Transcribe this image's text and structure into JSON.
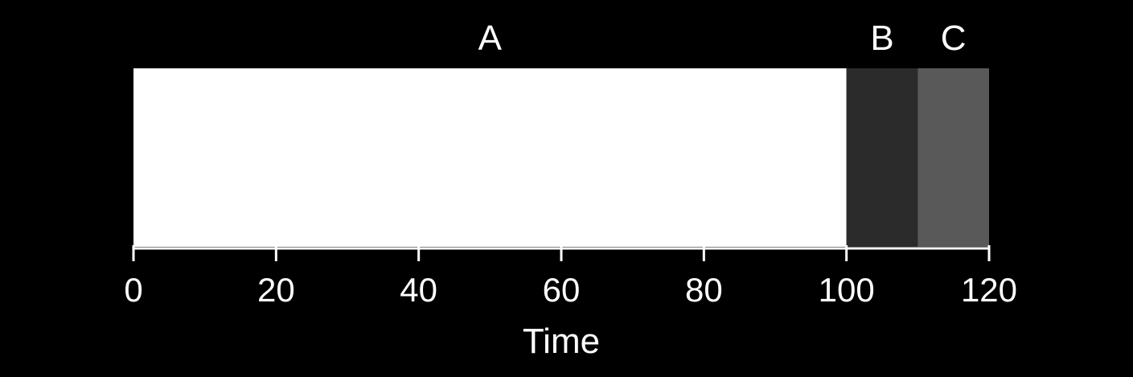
{
  "chart_data": {
    "type": "bar",
    "orientation": "horizontal-stacked",
    "segments": [
      {
        "name": "A",
        "start": 0,
        "end": 100,
        "color": "#ffffff"
      },
      {
        "name": "B",
        "start": 100,
        "end": 110,
        "color": "#2b2b2b"
      },
      {
        "name": "C",
        "start": 110,
        "end": 120,
        "color": "#595959"
      }
    ],
    "xlabel": "Time",
    "xlim": [
      0,
      120
    ],
    "xticks": [
      0,
      20,
      40,
      60,
      80,
      100,
      120
    ],
    "grid": false,
    "background": "#000000",
    "axis_color": "#ffffff"
  }
}
